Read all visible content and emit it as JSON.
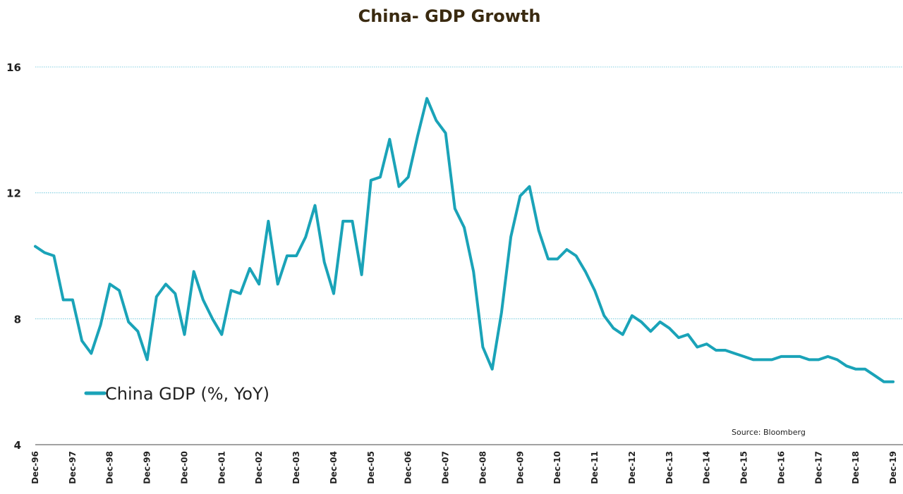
{
  "chart_data": {
    "type": "line",
    "title": "China- GDP Growth",
    "source": "Source: Bloomberg",
    "ylim": [
      4,
      16
    ],
    "yticks": [
      4,
      8,
      12,
      16
    ],
    "grid": "horizontal",
    "legend_position": "bottom-left",
    "line_color": "#1aa3b8",
    "title_color": "#3a2a10",
    "x_tick_labels": [
      "Dec-96",
      "Dec-97",
      "Dec-98",
      "Dec-99",
      "Dec-00",
      "Dec-01",
      "Dec-02",
      "Dec-03",
      "Dec-04",
      "Dec-05",
      "Dec-06",
      "Dec-07",
      "Dec-08",
      "Dec-09",
      "Dec-10",
      "Dec-11",
      "Dec-12",
      "Dec-13",
      "Dec-14",
      "Dec-15",
      "Dec-16",
      "Dec-17",
      "Dec-18",
      "Dec-19"
    ],
    "series": [
      {
        "name": "China GDP (%, YoY)",
        "values": [
          10.3,
          10.1,
          10.0,
          8.6,
          8.6,
          7.3,
          6.9,
          7.8,
          9.1,
          8.9,
          7.9,
          7.6,
          6.7,
          8.7,
          9.1,
          8.8,
          7.5,
          9.5,
          8.6,
          8.0,
          7.5,
          8.9,
          8.8,
          9.6,
          9.1,
          11.1,
          9.1,
          10.0,
          10.0,
          10.6,
          11.6,
          9.8,
          8.8,
          11.1,
          11.1,
          9.4,
          12.4,
          12.5,
          13.7,
          12.2,
          12.5,
          13.8,
          15.0,
          14.3,
          13.9,
          11.5,
          10.9,
          9.5,
          7.1,
          6.4,
          8.2,
          10.6,
          11.9,
          12.2,
          10.8,
          9.9,
          9.9,
          10.2,
          10.0,
          9.5,
          8.9,
          8.1,
          7.7,
          7.5,
          8.1,
          7.9,
          7.6,
          7.9,
          7.7,
          7.4,
          7.5,
          7.1,
          7.2,
          7.0,
          7.0,
          6.9,
          6.8,
          6.7,
          6.7,
          6.7,
          6.8,
          6.8,
          6.8,
          6.7,
          6.7,
          6.8,
          6.7,
          6.5,
          6.4,
          6.4,
          6.2,
          6.0,
          6.0
        ]
      }
    ]
  }
}
